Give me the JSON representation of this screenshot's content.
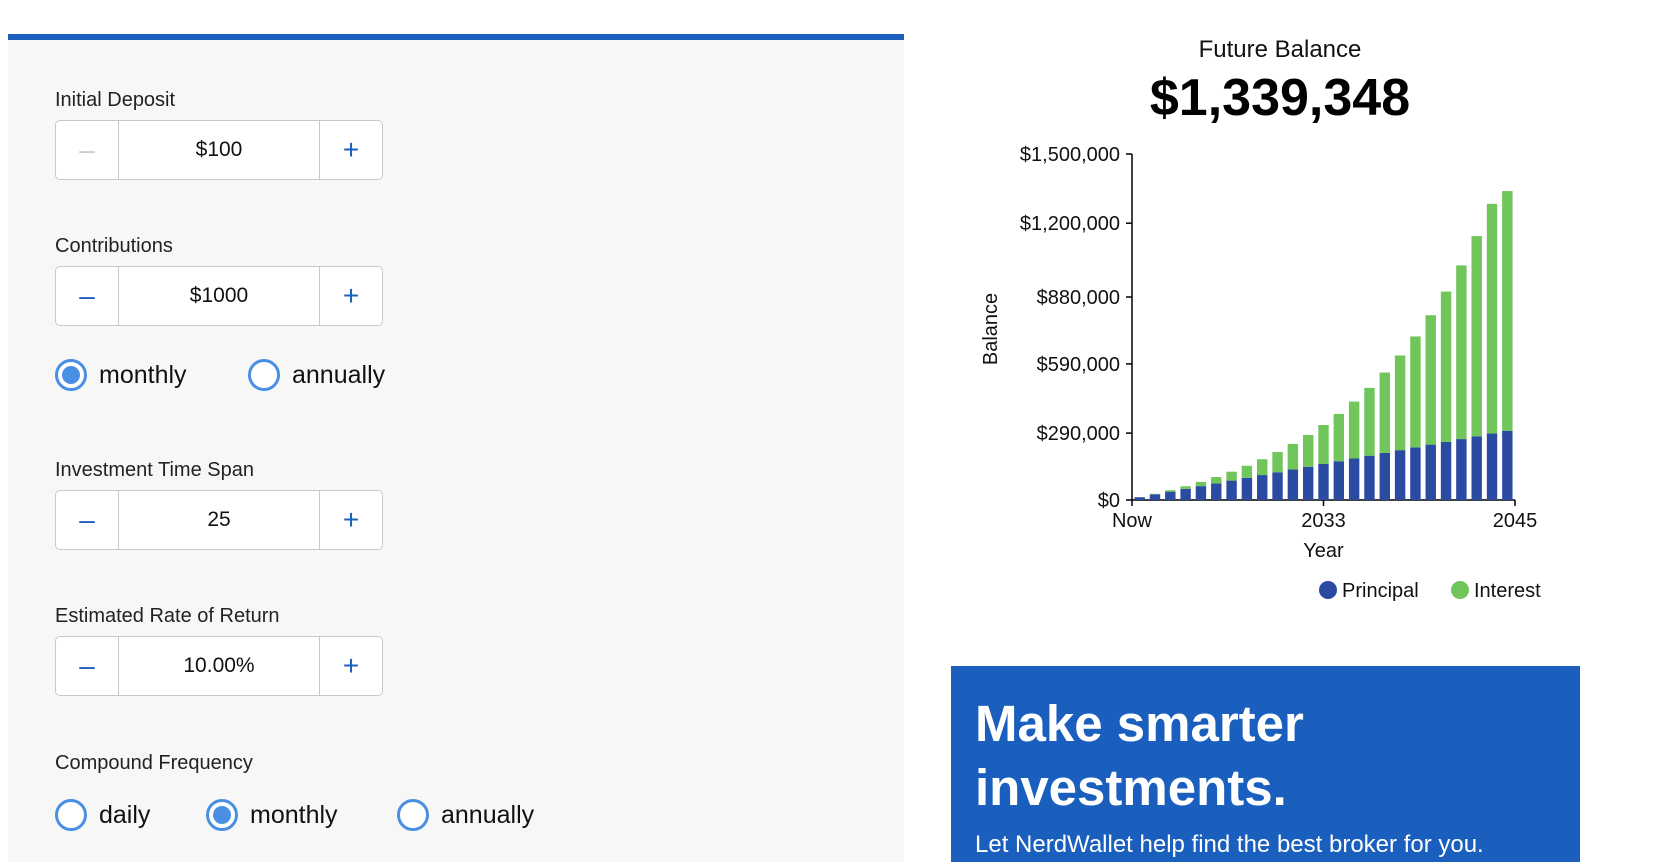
{
  "form": {
    "initial_deposit": {
      "label": "Initial Deposit",
      "value": "$100",
      "minus": "–",
      "plus": "+"
    },
    "contributions": {
      "label": "Contributions",
      "value": "$1000",
      "minus": "–",
      "plus": "+"
    },
    "contribution_frequency": {
      "options": [
        {
          "label": "monthly",
          "selected": true
        },
        {
          "label": "annually",
          "selected": false
        }
      ]
    },
    "time_span": {
      "label": "Investment Time Span",
      "value": "25",
      "minus": "–",
      "plus": "+"
    },
    "rate_of_return": {
      "label": "Estimated Rate of Return",
      "value": "10.00%",
      "minus": "–",
      "plus": "+"
    },
    "compound_frequency": {
      "label": "Compound Frequency",
      "options": [
        {
          "label": "daily",
          "selected": false
        },
        {
          "label": "monthly",
          "selected": true
        },
        {
          "label": "annually",
          "selected": false
        }
      ]
    }
  },
  "result": {
    "title": "Future Balance",
    "value": "$1,339,348"
  },
  "colors": {
    "principal": "#2b4ba3",
    "interest": "#70c65a",
    "accent": "#1b5fbe",
    "radio": "#4a90e2"
  },
  "chart_data": {
    "type": "bar",
    "stacked": true,
    "xlabel": "Year",
    "ylabel": "Balance",
    "ylim": [
      0,
      1500000
    ],
    "yticks": [
      {
        "value": 0,
        "label": "$0"
      },
      {
        "value": 290000,
        "label": "$290,000"
      },
      {
        "value": 590000,
        "label": "$590,000"
      },
      {
        "value": 880000,
        "label": "$880,000"
      },
      {
        "value": 1200000,
        "label": "$1,200,000"
      },
      {
        "value": 1500000,
        "label": "$1,500,000"
      }
    ],
    "xticks": [
      {
        "index": 0,
        "label": "Now"
      },
      {
        "index": 12,
        "label": "2033"
      },
      {
        "index": 24,
        "label": "2045"
      }
    ],
    "series": [
      {
        "name": "Principal",
        "values": [
          12100,
          24100,
          36100,
          48100,
          60100,
          72100,
          84100,
          96100,
          108100,
          120100,
          132100,
          144100,
          156100,
          168100,
          180100,
          192100,
          204100,
          216100,
          228100,
          240100,
          252100,
          264100,
          276100,
          288100,
          300100
        ]
      },
      {
        "name": "Interest",
        "values": [
          600,
          2700,
          6200,
          11400,
          18400,
          27400,
          38600,
          52200,
          68600,
          88000,
          111000,
          137800,
          169000,
          205000,
          246500,
          294000,
          348500,
          410500,
          481000,
          561000,
          651500,
          753000,
          868000,
          996000,
          1039248
        ]
      }
    ],
    "legend": "bottom-right"
  },
  "ad": {
    "headline": "Make smarter investments.",
    "subtext": "Let NerdWallet help find the best broker for you."
  }
}
